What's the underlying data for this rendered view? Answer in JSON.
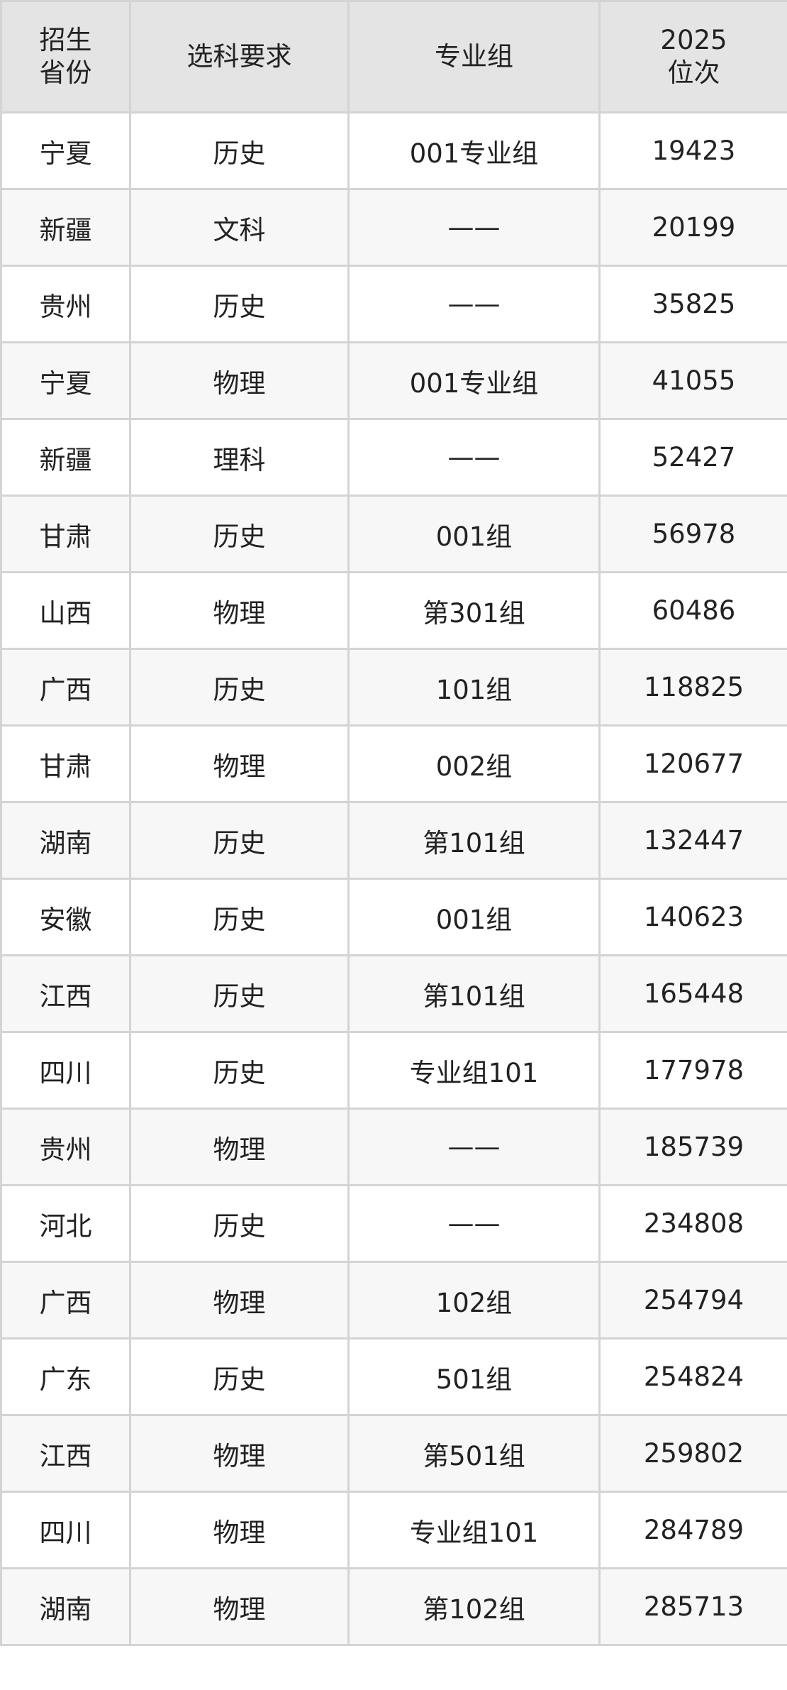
{
  "table": {
    "headers": [
      {
        "lines": [
          "招生",
          "省份"
        ]
      },
      {
        "lines": [
          "选科要求"
        ]
      },
      {
        "lines": [
          "专业组"
        ]
      },
      {
        "lines": [
          "2025",
          "位次"
        ]
      }
    ],
    "rows": [
      [
        "宁夏",
        "历史",
        "001专业组",
        "19423"
      ],
      [
        "新疆",
        "文科",
        "——",
        "20199"
      ],
      [
        "贵州",
        "历史",
        "——",
        "35825"
      ],
      [
        "宁夏",
        "物理",
        "001专业组",
        "41055"
      ],
      [
        "新疆",
        "理科",
        "——",
        "52427"
      ],
      [
        "甘肃",
        "历史",
        "001组",
        "56978"
      ],
      [
        "山西",
        "物理",
        "第301组",
        "60486"
      ],
      [
        "广西",
        "历史",
        "101组",
        "118825"
      ],
      [
        "甘肃",
        "物理",
        "002组",
        "120677"
      ],
      [
        "湖南",
        "历史",
        "第101组",
        "132447"
      ],
      [
        "安徽",
        "历史",
        "001组",
        "140623"
      ],
      [
        "江西",
        "历史",
        "第101组",
        "165448"
      ],
      [
        "四川",
        "历史",
        "专业组101",
        "177978"
      ],
      [
        "贵州",
        "物理",
        "——",
        "185739"
      ],
      [
        "河北",
        "历史",
        "——",
        "234808"
      ],
      [
        "广西",
        "物理",
        "102组",
        "254794"
      ],
      [
        "广东",
        "历史",
        "501组",
        "254824"
      ],
      [
        "江西",
        "物理",
        "第501组",
        "259802"
      ],
      [
        "四川",
        "物理",
        "专业组101",
        "284789"
      ],
      [
        "湖南",
        "物理",
        "第102组",
        "285713"
      ]
    ]
  }
}
